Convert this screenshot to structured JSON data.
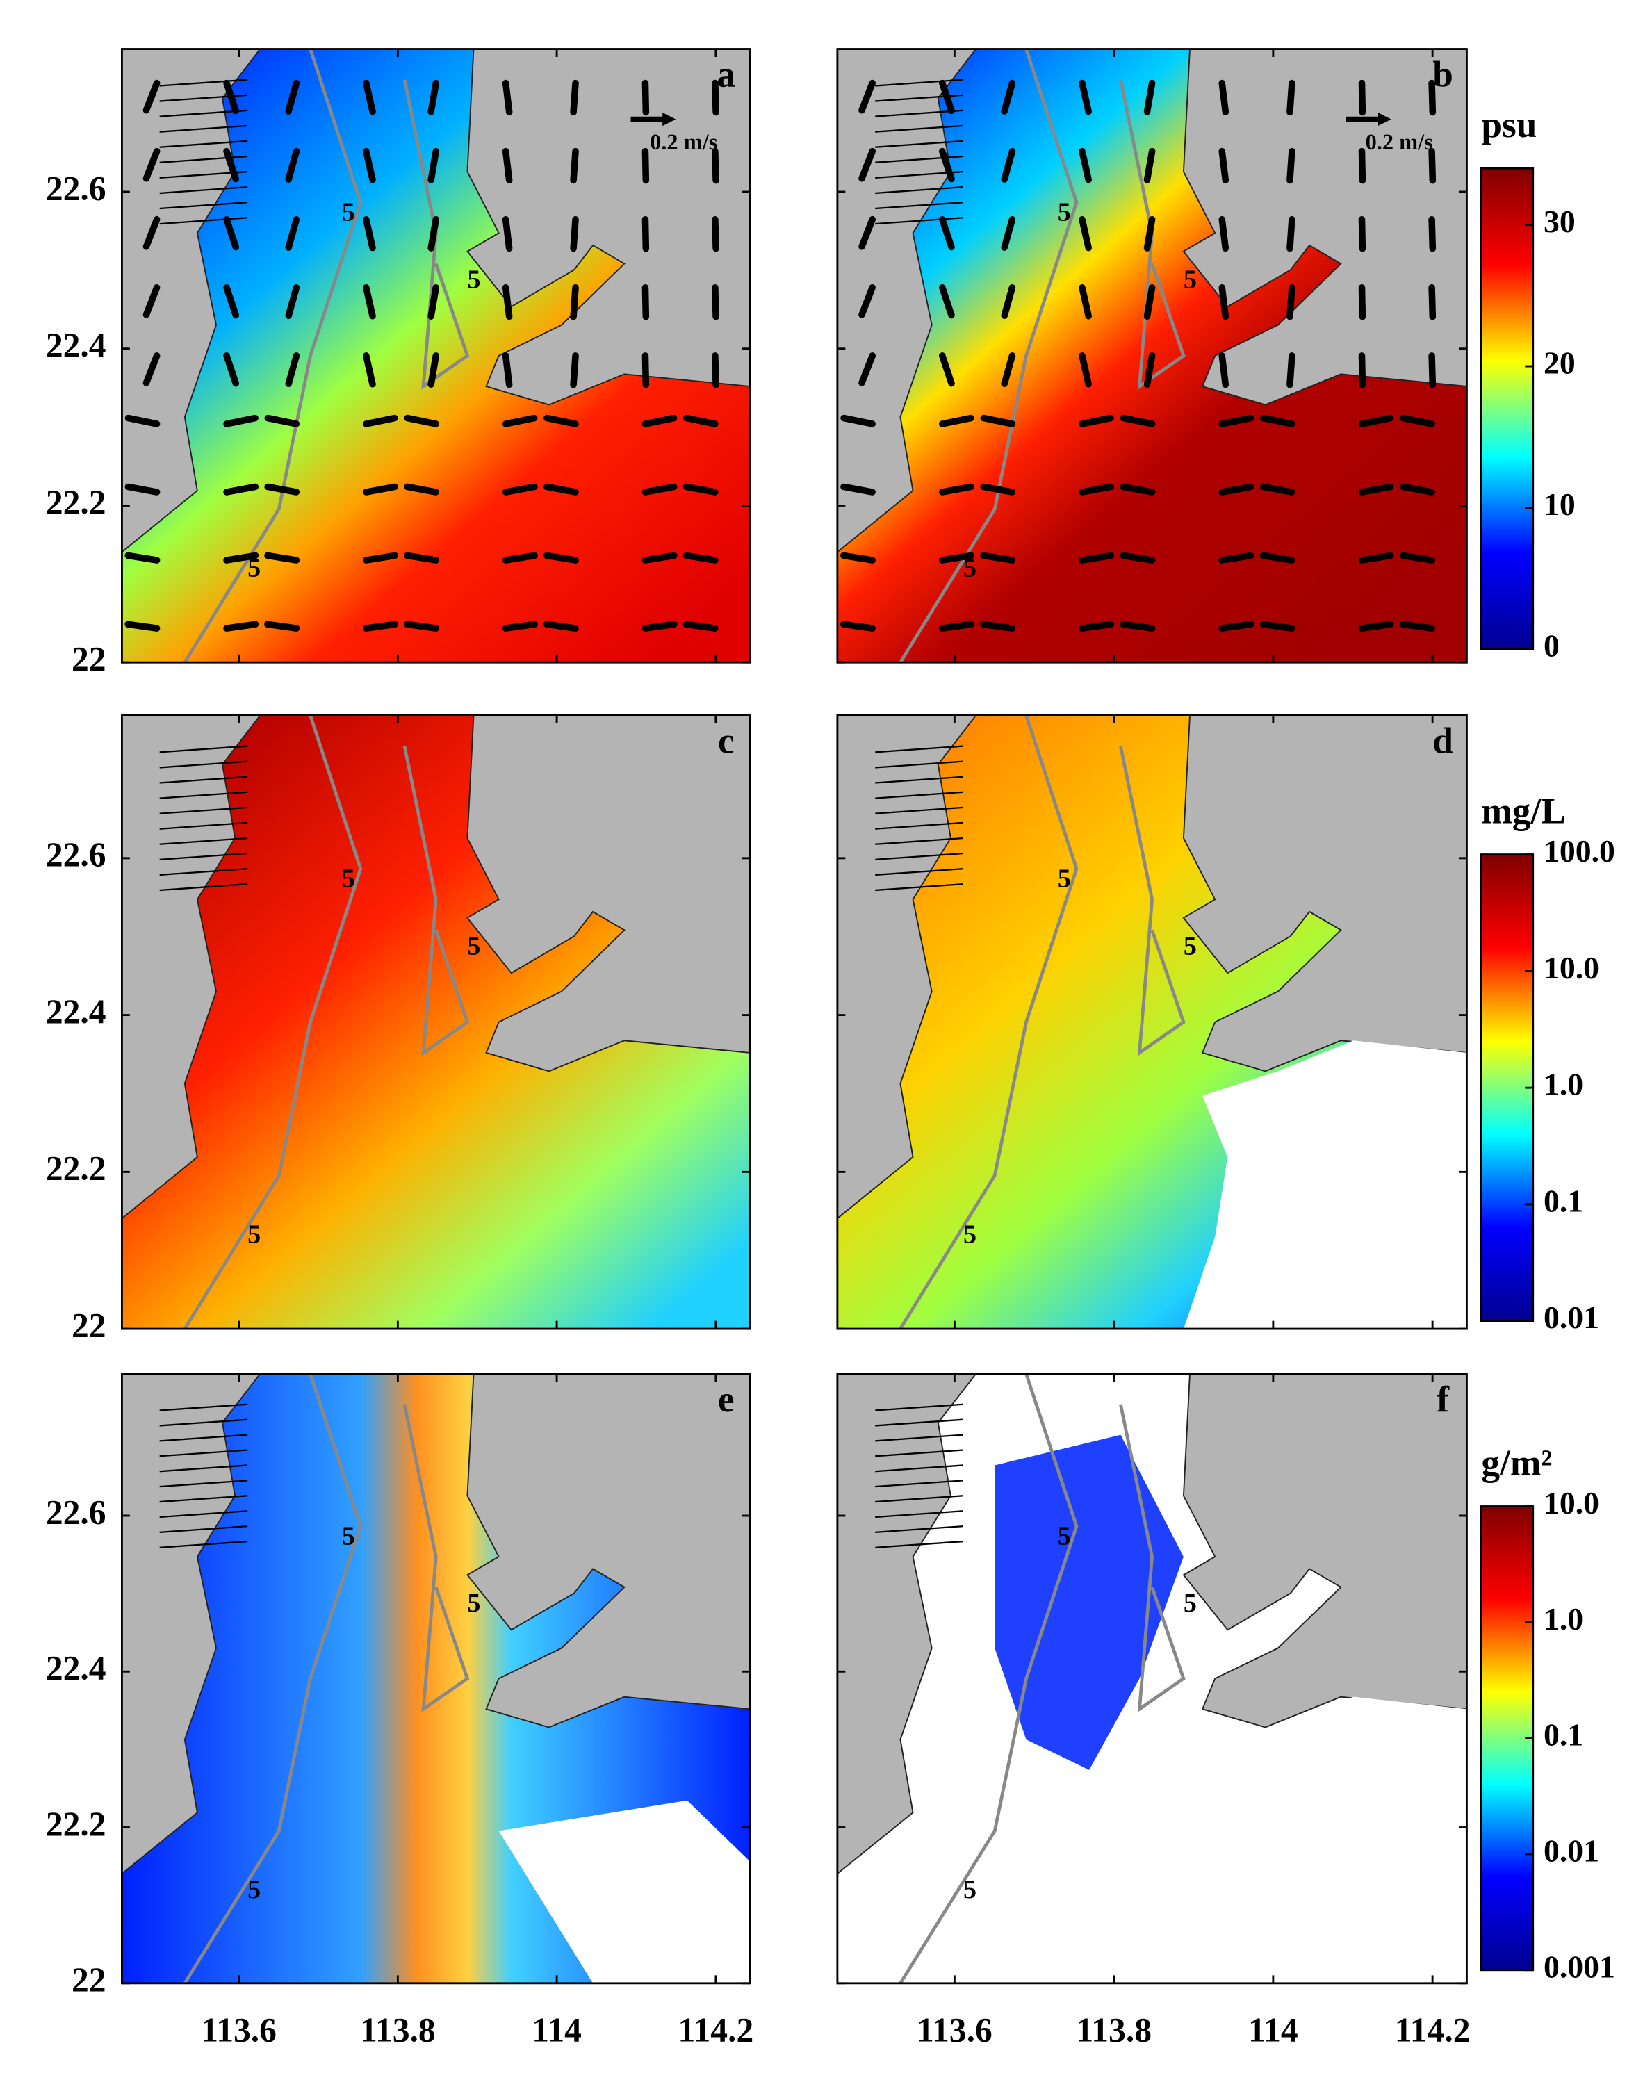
{
  "axes": {
    "xlim": [
      113.453,
      114.243
    ],
    "ylim": [
      22,
      22.782
    ],
    "xticks": [
      113.6,
      113.8,
      114,
      114.2
    ],
    "yticks": [
      22,
      22.2,
      22.4,
      22.6
    ]
  },
  "panels": [
    {
      "label": "a",
      "arrow_label": "0.2 m/s"
    },
    {
      "label": "b",
      "arrow_label": "0.2 m/s"
    },
    {
      "label": "c"
    },
    {
      "label": "d"
    },
    {
      "label": "e"
    },
    {
      "label": "f"
    }
  ],
  "contour_label": "5",
  "colorbars": [
    {
      "unit": "psu",
      "scale": "linear",
      "lim": [
        0,
        34
      ],
      "ticks": [
        0,
        10,
        20,
        30
      ],
      "colors": [
        "#00008f",
        "#0000ff",
        "#00ffff",
        "#ffff00",
        "#ff0000",
        "#800000"
      ]
    },
    {
      "unit": "mg/L",
      "scale": "log",
      "lim": [
        0.01,
        100
      ],
      "ticks": [
        0.01,
        0.1,
        {
          "value": 1,
          "label": "1.0"
        },
        {
          "value": 10,
          "label": "10.0"
        },
        {
          "value": 100,
          "label": "100.0"
        }
      ],
      "colors": [
        "#00008f",
        "#0000ff",
        "#00ffff",
        "#ffff00",
        "#ff0000",
        "#800000"
      ]
    },
    {
      "unit": "g/m²",
      "scale": "log",
      "lim": [
        0.001,
        10
      ],
      "ticks": [
        0.001,
        0.01,
        0.1,
        {
          "value": 1,
          "label": "1.0"
        },
        {
          "value": 10,
          "label": "10.0"
        }
      ],
      "colors": [
        "#00008f",
        "#0000ff",
        "#00ffff",
        "#ffff00",
        "#ff0000",
        "#800000"
      ]
    }
  ]
}
